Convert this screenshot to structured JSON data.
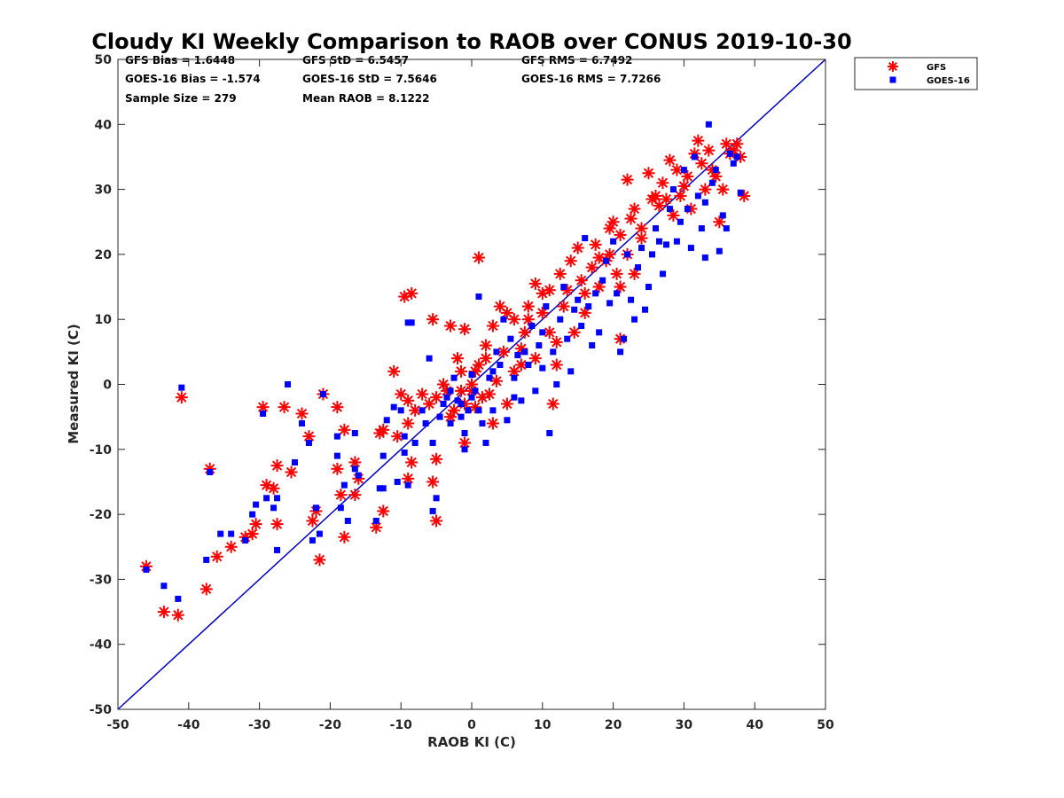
{
  "chart_data": {
    "type": "scatter",
    "title": "Cloudy KI Weekly Comparison to RAOB over CONUS 2019-10-30",
    "xlabel": "RAOB KI (C)",
    "ylabel": "Measured KI (C)",
    "xlim": [
      -50,
      50
    ],
    "ylim": [
      -50,
      50
    ],
    "xticks": [
      -50,
      -40,
      -30,
      -20,
      -10,
      0,
      10,
      20,
      30,
      40,
      50
    ],
    "yticks": [
      -50,
      -40,
      -30,
      -20,
      -10,
      0,
      10,
      20,
      30,
      40,
      50
    ],
    "grid": false,
    "legend": "outside-top-right",
    "reference_line": {
      "from": [
        -50,
        -50
      ],
      "to": [
        50,
        50
      ],
      "color": "#0000cc"
    },
    "stats": [
      [
        "GFS Bias = 1.6448",
        "GFS StD = 6.5457",
        "GFS RMS = 6.7492"
      ],
      [
        "GOES-16 Bias = -1.574",
        "GOES-16 StD = 7.5646",
        "GOES-16 RMS = 7.7266"
      ],
      [
        "Sample Size = 279",
        "Mean RAOB = 8.1222"
      ]
    ],
    "series": [
      {
        "name": "GFS",
        "marker": "asterisk",
        "color": "#ff0000",
        "points": [
          [
            -46,
            -28
          ],
          [
            -43.5,
            -35
          ],
          [
            -41.5,
            -35.5
          ],
          [
            -41,
            -2
          ],
          [
            -37.5,
            -31.5
          ],
          [
            -37,
            -13
          ],
          [
            -36,
            -26.5
          ],
          [
            -34,
            -25
          ],
          [
            -32,
            -23.5
          ],
          [
            -31,
            -23
          ],
          [
            -30.5,
            -21.5
          ],
          [
            -29.5,
            -3.5
          ],
          [
            -29,
            -15.5
          ],
          [
            -28,
            -16
          ],
          [
            -27.5,
            -12.5
          ],
          [
            -27.5,
            -21.5
          ],
          [
            -26.5,
            -3.5
          ],
          [
            -25.5,
            -13.5
          ],
          [
            -24,
            -4.5
          ],
          [
            -23,
            -8
          ],
          [
            -22.5,
            -21
          ],
          [
            -22,
            -19.5
          ],
          [
            -21.5,
            -27
          ],
          [
            -21,
            -1.5
          ],
          [
            -19,
            -3.5
          ],
          [
            -19,
            -13
          ],
          [
            -18.5,
            -17
          ],
          [
            -18,
            -7
          ],
          [
            -18,
            -23.5
          ],
          [
            -16.5,
            -12
          ],
          [
            -16.5,
            -17
          ],
          [
            -16,
            -14.5
          ],
          [
            -13.5,
            -22
          ],
          [
            -13,
            -7.5
          ],
          [
            -12.5,
            -7
          ],
          [
            -12.5,
            -19.5
          ],
          [
            -11,
            2
          ],
          [
            -10.5,
            -8
          ],
          [
            -10,
            -1.5
          ],
          [
            -9.5,
            13.5
          ],
          [
            -9,
            -2.5
          ],
          [
            -9,
            -6
          ],
          [
            -8.5,
            14
          ],
          [
            -8.5,
            -12
          ],
          [
            -9,
            -14.5
          ],
          [
            -8,
            -4
          ],
          [
            -7,
            -1.5
          ],
          [
            -6,
            -3
          ],
          [
            -5.5,
            10
          ],
          [
            -5.5,
            -15
          ],
          [
            -5,
            -2
          ],
          [
            -5,
            -11.5
          ],
          [
            -5,
            -21
          ],
          [
            -4,
            0
          ],
          [
            -3.5,
            -1
          ],
          [
            -3,
            9
          ],
          [
            -3,
            -5
          ],
          [
            -2.5,
            -4
          ],
          [
            -2,
            4
          ],
          [
            -1.5,
            2
          ],
          [
            -1.5,
            -1
          ],
          [
            -1,
            8.5
          ],
          [
            -1,
            -3
          ],
          [
            -1,
            -9
          ],
          [
            0,
            0
          ],
          [
            0,
            -1
          ],
          [
            0.5,
            2
          ],
          [
            0.5,
            -3.5
          ],
          [
            1,
            19.5
          ],
          [
            1,
            3
          ],
          [
            1.5,
            -2
          ],
          [
            2,
            4
          ],
          [
            2,
            6
          ],
          [
            2.5,
            -1.5
          ],
          [
            3,
            -6
          ],
          [
            3,
            9
          ],
          [
            3.5,
            0.5
          ],
          [
            4,
            12
          ],
          [
            4.5,
            5
          ],
          [
            5,
            11
          ],
          [
            5,
            -3
          ],
          [
            6,
            2
          ],
          [
            6,
            10
          ],
          [
            7,
            3
          ],
          [
            7,
            5.5
          ],
          [
            7.5,
            8
          ],
          [
            8,
            10
          ],
          [
            8,
            12
          ],
          [
            9,
            15.5
          ],
          [
            9,
            4
          ],
          [
            10,
            14
          ],
          [
            10,
            11
          ],
          [
            11,
            8
          ],
          [
            11,
            14.5
          ],
          [
            11.5,
            -3
          ],
          [
            12,
            6.5
          ],
          [
            12,
            3
          ],
          [
            12.5,
            17
          ],
          [
            13,
            12
          ],
          [
            13.5,
            14.5
          ],
          [
            14,
            19
          ],
          [
            14.5,
            8
          ],
          [
            15,
            21
          ],
          [
            15.5,
            16
          ],
          [
            16,
            11
          ],
          [
            16,
            14
          ],
          [
            17,
            18
          ],
          [
            17.5,
            21.5
          ],
          [
            18,
            15
          ],
          [
            18,
            19.5
          ],
          [
            19,
            19
          ],
          [
            19.5,
            20
          ],
          [
            19.5,
            24
          ],
          [
            20,
            25
          ],
          [
            20.5,
            17
          ],
          [
            21,
            23
          ],
          [
            21,
            15
          ],
          [
            21,
            7
          ],
          [
            22,
            31.5
          ],
          [
            22,
            20
          ],
          [
            22.5,
            25.5
          ],
          [
            23,
            27
          ],
          [
            23,
            17
          ],
          [
            24,
            22.5
          ],
          [
            24,
            24
          ],
          [
            25,
            32.5
          ],
          [
            25.5,
            28.5
          ],
          [
            26,
            29
          ],
          [
            26.5,
            27.5
          ],
          [
            27,
            31
          ],
          [
            27.5,
            28.5
          ],
          [
            28,
            34.5
          ],
          [
            28.5,
            26
          ],
          [
            29,
            33
          ],
          [
            29.5,
            29
          ],
          [
            30,
            30.5
          ],
          [
            30.5,
            32
          ],
          [
            31,
            27
          ],
          [
            31.5,
            35.5
          ],
          [
            32,
            37.5
          ],
          [
            32.5,
            34
          ],
          [
            33,
            30
          ],
          [
            33.5,
            36
          ],
          [
            34,
            33
          ],
          [
            34.5,
            32
          ],
          [
            35,
            25
          ],
          [
            35.5,
            30
          ],
          [
            36,
            37
          ],
          [
            36.5,
            35.5
          ],
          [
            37,
            36
          ],
          [
            37.5,
            37
          ],
          [
            38,
            35
          ],
          [
            38.5,
            29
          ]
        ]
      },
      {
        "name": "GOES-16",
        "marker": "square",
        "color": "#0000ff",
        "points": [
          [
            -46,
            -28.5
          ],
          [
            -43.5,
            -31
          ],
          [
            -41.5,
            -33
          ],
          [
            -41,
            -0.5
          ],
          [
            -37.5,
            -27
          ],
          [
            -37,
            -13.5
          ],
          [
            -35.5,
            -23
          ],
          [
            -34,
            -23
          ],
          [
            -32,
            -24
          ],
          [
            -31,
            -20
          ],
          [
            -30.5,
            -18.5
          ],
          [
            -29.5,
            -4.5
          ],
          [
            -29,
            -17.5
          ],
          [
            -28,
            -19
          ],
          [
            -27.5,
            -17.5
          ],
          [
            -27.5,
            -25.5
          ],
          [
            -26,
            0
          ],
          [
            -25,
            -12
          ],
          [
            -24,
            -6
          ],
          [
            -23,
            -9
          ],
          [
            -22.5,
            -24
          ],
          [
            -22,
            -19
          ],
          [
            -21.5,
            -23
          ],
          [
            -21,
            -1.5
          ],
          [
            -19,
            -8
          ],
          [
            -19,
            -11
          ],
          [
            -18.5,
            -19
          ],
          [
            -18,
            -15.5
          ],
          [
            -17.5,
            -21
          ],
          [
            -16.5,
            -7.5
          ],
          [
            -16.5,
            -13
          ],
          [
            -16,
            -14
          ],
          [
            -13.5,
            -21
          ],
          [
            -13,
            -16
          ],
          [
            -12.5,
            -11
          ],
          [
            -12.5,
            -16
          ],
          [
            -12,
            -5.5
          ],
          [
            -11,
            -3.5
          ],
          [
            -10.5,
            -15
          ],
          [
            -10,
            -4
          ],
          [
            -9.5,
            -8
          ],
          [
            -9.5,
            -10.5
          ],
          [
            -9,
            -15.5
          ],
          [
            -9,
            9.5
          ],
          [
            -8.5,
            9.5
          ],
          [
            -8,
            -9
          ],
          [
            -7,
            -4
          ],
          [
            -6.5,
            -6
          ],
          [
            -6,
            4
          ],
          [
            -5.5,
            -9
          ],
          [
            -5.5,
            -19.5
          ],
          [
            -5,
            -17.5
          ],
          [
            -4.5,
            -5
          ],
          [
            -4,
            -3
          ],
          [
            -3.5,
            -2
          ],
          [
            -3,
            -6
          ],
          [
            -3,
            -1
          ],
          [
            -2.5,
            1
          ],
          [
            -2,
            -2.5
          ],
          [
            -1.5,
            -5
          ],
          [
            -1.5,
            -3
          ],
          [
            -1,
            -7.5
          ],
          [
            -1,
            -10
          ],
          [
            -0.5,
            -4
          ],
          [
            0,
            -2
          ],
          [
            0,
            1.5
          ],
          [
            0.5,
            -1
          ],
          [
            1,
            13.5
          ],
          [
            1,
            -4
          ],
          [
            1.5,
            -6
          ],
          [
            2,
            -9
          ],
          [
            2.5,
            1
          ],
          [
            3,
            2
          ],
          [
            3,
            -4
          ],
          [
            3.5,
            5
          ],
          [
            4,
            3
          ],
          [
            4.5,
            10
          ],
          [
            5,
            -5.5
          ],
          [
            5.5,
            7
          ],
          [
            6,
            1
          ],
          [
            6,
            -2
          ],
          [
            6.5,
            4.5
          ],
          [
            7,
            -2.5
          ],
          [
            7.5,
            5
          ],
          [
            8,
            3
          ],
          [
            8.5,
            9
          ],
          [
            9,
            -1
          ],
          [
            9.5,
            6
          ],
          [
            10,
            8
          ],
          [
            10,
            2.5
          ],
          [
            10.5,
            12
          ],
          [
            11,
            -7.5
          ],
          [
            11.5,
            5
          ],
          [
            12,
            0
          ],
          [
            12.5,
            10
          ],
          [
            13,
            15
          ],
          [
            13.5,
            7
          ],
          [
            14,
            2
          ],
          [
            14.5,
            11.5
          ],
          [
            15,
            13
          ],
          [
            15.5,
            9
          ],
          [
            16,
            22.5
          ],
          [
            16.5,
            12
          ],
          [
            17,
            6
          ],
          [
            17.5,
            14
          ],
          [
            18,
            8
          ],
          [
            18.5,
            16
          ],
          [
            19,
            19
          ],
          [
            19.5,
            12.5
          ],
          [
            20,
            22
          ],
          [
            20.5,
            14
          ],
          [
            21,
            5
          ],
          [
            21.5,
            7
          ],
          [
            22,
            20
          ],
          [
            22.5,
            13
          ],
          [
            23,
            10
          ],
          [
            23.5,
            18
          ],
          [
            24,
            21
          ],
          [
            24.5,
            11.5
          ],
          [
            25,
            15
          ],
          [
            25.5,
            20
          ],
          [
            26,
            24
          ],
          [
            26.5,
            22
          ],
          [
            27,
            17
          ],
          [
            27.5,
            21.5
          ],
          [
            28,
            27
          ],
          [
            28.5,
            30
          ],
          [
            29,
            22
          ],
          [
            29.5,
            25
          ],
          [
            30,
            33
          ],
          [
            30.5,
            27
          ],
          [
            31,
            21
          ],
          [
            31.5,
            35
          ],
          [
            32,
            29
          ],
          [
            32.5,
            24
          ],
          [
            33,
            19.5
          ],
          [
            33,
            28
          ],
          [
            33.5,
            40
          ],
          [
            34,
            31
          ],
          [
            34.5,
            33
          ],
          [
            35,
            20.5
          ],
          [
            35.5,
            26
          ],
          [
            36,
            24
          ],
          [
            36.5,
            35.5
          ],
          [
            37,
            34
          ],
          [
            37.5,
            35
          ],
          [
            38,
            29.5
          ]
        ]
      }
    ]
  }
}
